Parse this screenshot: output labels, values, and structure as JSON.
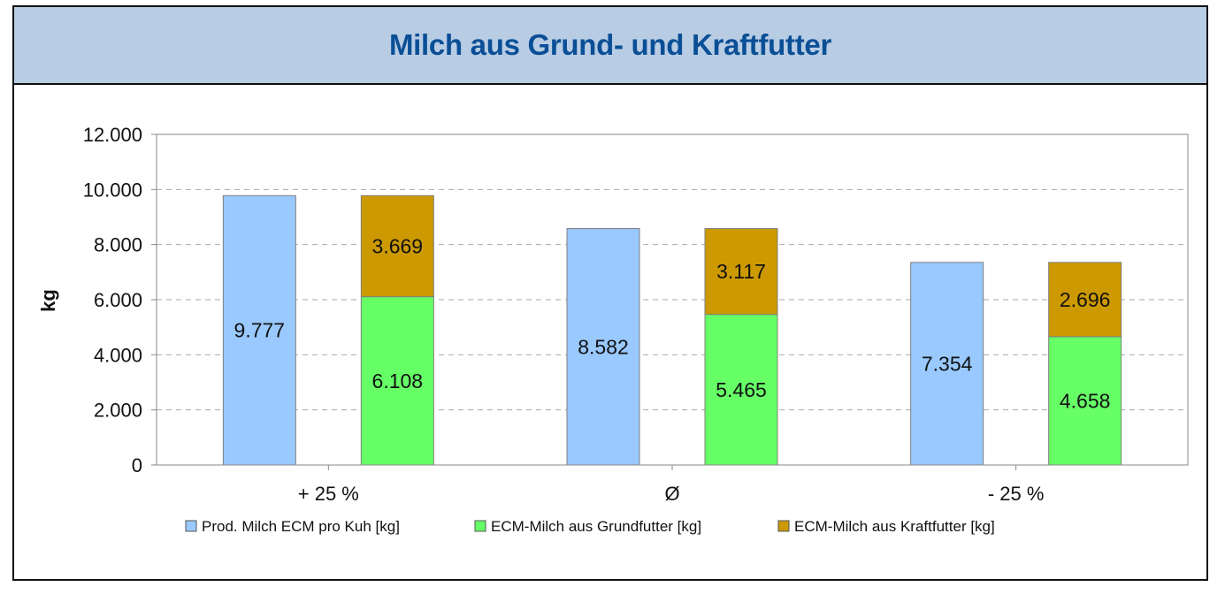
{
  "chart_data": {
    "type": "bar",
    "stacked_groups": true,
    "title": "Milch aus Grund- und Kraftfutter",
    "xlabel": "",
    "ylabel": "kg",
    "ylim": [
      0,
      12000
    ],
    "yticks": [
      0,
      2000,
      4000,
      6000,
      8000,
      10000,
      12000
    ],
    "ytick_labels": [
      "0",
      "2.000",
      "4.000",
      "6.000",
      "8.000",
      "10.000",
      "12.000"
    ],
    "grid": true,
    "legend_position": "bottom",
    "categories": [
      "+ 25 %",
      "Ø",
      "- 25 %"
    ],
    "series": [
      {
        "name": "Prod. Milch ECM pro Kuh [kg]",
        "color": "#99c9ff",
        "stack": "total",
        "values": [
          9777,
          8582,
          7354
        ],
        "labels": [
          "9.777",
          "8.582",
          "7.354"
        ]
      },
      {
        "name": "ECM-Milch aus Grundfutter [kg]",
        "color": "#66ff66",
        "stack": "split",
        "values": [
          6108,
          5465,
          4658
        ],
        "labels": [
          "6.108",
          "5.465",
          "4.658"
        ]
      },
      {
        "name": "ECM-Milch aus Kraftfutter [kg]",
        "color": "#cc9900",
        "stack": "split",
        "values": [
          3669,
          3117,
          2696
        ],
        "labels": [
          "3.669",
          "3.117",
          "2.696"
        ]
      }
    ]
  },
  "colors": {
    "header_bg": "#b8cce4",
    "title": "#0a4f96",
    "grid": "#aaaaaa",
    "axis": "#888888",
    "bar_border": "#7f7f7f"
  }
}
